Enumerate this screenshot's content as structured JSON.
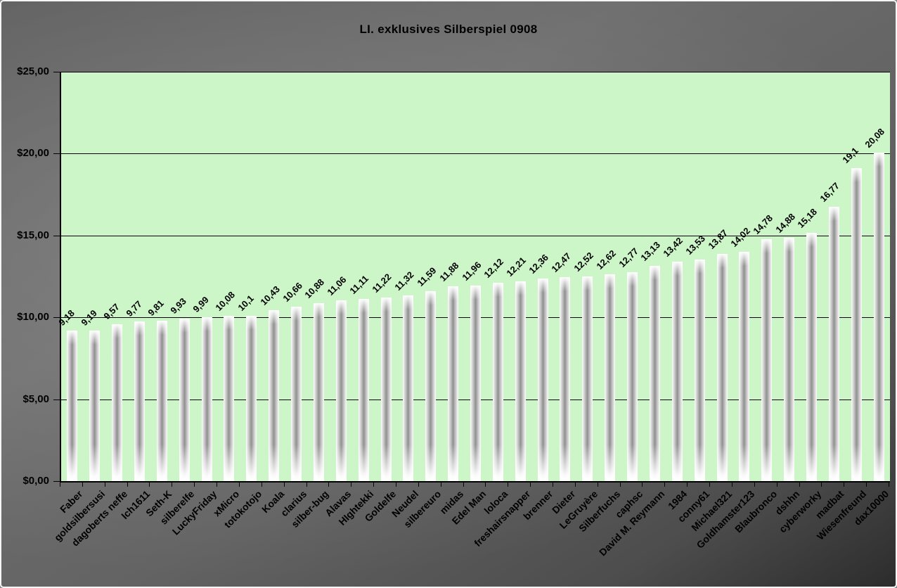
{
  "title": "LI. exklusives Silberspiel 0908",
  "colors": {
    "plot_background": "#ccf5c8",
    "bar_edge": "#ffffff",
    "bar_center": "#8f8f8f",
    "gridline": "#000000",
    "text": "#000000",
    "chart_background_light": "#6e6e6e",
    "chart_background_dark": "#2c2c2c"
  },
  "chart_data": {
    "type": "bar",
    "title": "LI. exklusives Silberspiel 0908",
    "categories": [
      "Faber",
      "goldsilbersusi",
      "dagoberts neffe",
      "Ich1611",
      "Seth-K",
      "silberelfe",
      "LuckyFriday",
      "xMicro",
      "totokotojo",
      "Koala",
      "clarius",
      "silber-bug",
      "Alavas",
      "HIghtekki",
      "Goldelfe",
      "Neudel",
      "silbereuro",
      "midas",
      "Edel Man",
      "loloca",
      "freshairsnapper",
      "brenner",
      "Dieter",
      "LeGruyère",
      "Silberfuchs",
      "caphsc",
      "David M. Reymann",
      "1984",
      "conny61",
      "Michael321",
      "Goldhamster123",
      "Blaubronco",
      "dshhn",
      "cyberworky",
      "madbat",
      "Wiesenfreund",
      "dax10000"
    ],
    "values": [
      9.18,
      9.19,
      9.57,
      9.77,
      9.81,
      9.93,
      9.99,
      10.08,
      10.1,
      10.43,
      10.66,
      10.88,
      11.06,
      11.11,
      11.22,
      11.32,
      11.59,
      11.88,
      11.96,
      12.12,
      12.21,
      12.36,
      12.47,
      12.52,
      12.62,
      12.77,
      13.13,
      13.42,
      13.53,
      13.87,
      14.02,
      14.78,
      14.88,
      15.18,
      16.77,
      19.1,
      20.08
    ],
    "value_labels": [
      "9,18",
      "9,19",
      "9,57",
      "9,77",
      "9,81",
      "9,93",
      "9,99",
      "10,08",
      "10,1",
      "10,43",
      "10,66",
      "10,88",
      "11,06",
      "11,11",
      "11,22",
      "11,32",
      "11,59",
      "11,88",
      "11,96",
      "12,12",
      "12,21",
      "12,36",
      "12,47",
      "12,52",
      "12,62",
      "12,77",
      "13,13",
      "13,42",
      "13,53",
      "13,87",
      "14,02",
      "14,78",
      "14,88",
      "15,18",
      "16,77",
      "19,1",
      "20,08"
    ],
    "xlabel": "",
    "ylabel": "",
    "ylim": [
      0,
      25
    ],
    "y_tick_values": [
      25,
      20,
      15,
      10,
      5,
      0
    ],
    "y_tick_labels": [
      "$25,00",
      "$20,00",
      "$15,00",
      "$10,00",
      "$5,00",
      "$0,00"
    ],
    "gridline_values": [
      25,
      20,
      15,
      10,
      5
    ],
    "grid": true,
    "legend": false,
    "label_rotation_deg": 45,
    "data_labels_shown": true
  }
}
